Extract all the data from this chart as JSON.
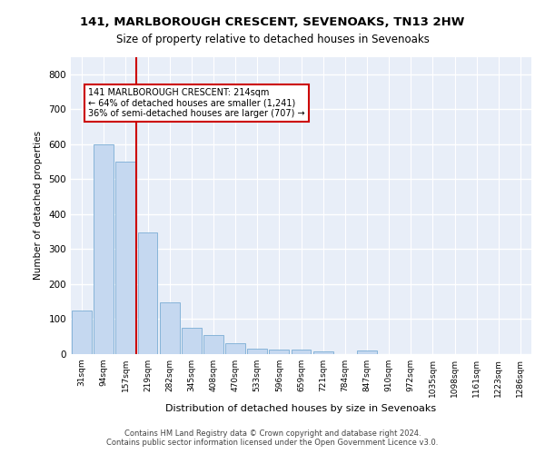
{
  "title1": "141, MARLBOROUGH CRESCENT, SEVENOAKS, TN13 2HW",
  "title2": "Size of property relative to detached houses in Sevenoaks",
  "xlabel": "Distribution of detached houses by size in Sevenoaks",
  "ylabel": "Number of detached properties",
  "categories": [
    "31sqm",
    "94sqm",
    "157sqm",
    "219sqm",
    "282sqm",
    "345sqm",
    "408sqm",
    "470sqm",
    "533sqm",
    "596sqm",
    "659sqm",
    "721sqm",
    "784sqm",
    "847sqm",
    "910sqm",
    "972sqm",
    "1035sqm",
    "1098sqm",
    "1161sqm",
    "1223sqm",
    "1286sqm"
  ],
  "values": [
    125,
    600,
    550,
    348,
    148,
    75,
    55,
    32,
    15,
    13,
    13,
    7,
    0,
    10,
    0,
    0,
    0,
    0,
    0,
    0,
    0
  ],
  "bar_color": "#c5d8f0",
  "bar_edge_color": "#7aadd4",
  "vline_color": "#cc0000",
  "vline_pos": 2.5,
  "annotation_text": "141 MARLBOROUGH CRESCENT: 214sqm\n← 64% of detached houses are smaller (1,241)\n36% of semi-detached houses are larger (707) →",
  "annotation_box_color": "#ffffff",
  "annotation_box_edge_color": "#cc0000",
  "ylim": [
    0,
    850
  ],
  "yticks": [
    0,
    100,
    200,
    300,
    400,
    500,
    600,
    700,
    800
  ],
  "footer1": "Contains HM Land Registry data © Crown copyright and database right 2024.",
  "footer2": "Contains public sector information licensed under the Open Government Licence v3.0.",
  "bg_color": "#e8eef8",
  "grid_color": "#ffffff"
}
